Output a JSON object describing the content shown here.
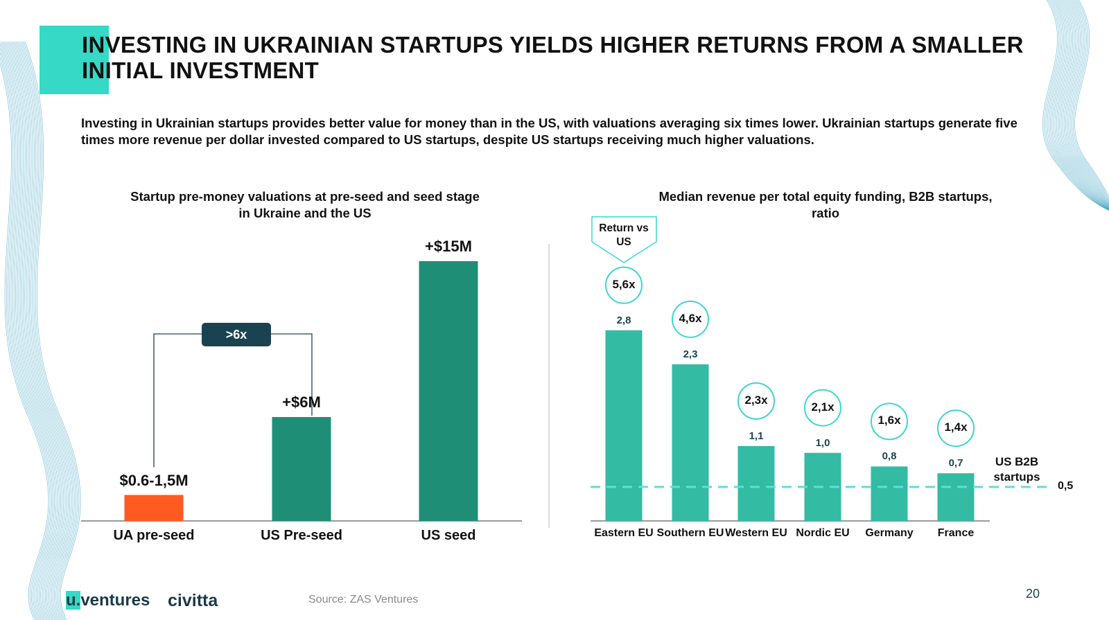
{
  "header": {
    "title": "INVESTING IN UKRAINIAN STARTUPS YIELDS HIGHER RETURNS FROM A SMALLER INITIAL INVESTMENT",
    "subtitle": "Investing in Ukrainian startups provides better value for money than in the US, with valuations averaging six times lower. Ukrainian startups generate five times more revenue per dollar invested compared to US startups, despite US startups receiving much higher valuations."
  },
  "chart_data": [
    {
      "type": "bar",
      "title": "Startup pre-money valuations at pre-seed and seed stage in Ukraine and the US",
      "categories": [
        "UA pre-seed",
        "US Pre-seed",
        "US seed"
      ],
      "values": [
        1.5,
        6,
        15
      ],
      "value_labels": [
        "$0.6-1,5M",
        "+$6M",
        "+$15M"
      ],
      "colors": [
        "#ff5a1f",
        "#1e8f76",
        "#1e8f76"
      ],
      "annotation": ">6x"
    },
    {
      "type": "bar",
      "title": "Median revenue per total equity funding, B2B startups, ratio",
      "categories": [
        "Eastern EU",
        "Southern EU",
        "Western EU",
        "Nordic EU",
        "Germany",
        "France"
      ],
      "values": [
        2.8,
        2.3,
        1.1,
        1.0,
        0.8,
        0.7
      ],
      "value_labels": [
        "2,8",
        "2,3",
        "1,1",
        "1,0",
        "0,8",
        "0,7"
      ],
      "color": "#33bba3",
      "annotation_title": "Return vs US",
      "annotations": [
        "5,6x",
        "4,6x",
        "2,3x",
        "2,1x",
        "1,6x",
        "1,4x"
      ],
      "reference_line": {
        "name": "US B2B startups",
        "value": 0.5,
        "label": "0,5"
      }
    }
  ],
  "footer": {
    "logos": [
      "u.ventures",
      "civitta"
    ],
    "source": "Source: ZAS Ventures",
    "page": "20"
  }
}
